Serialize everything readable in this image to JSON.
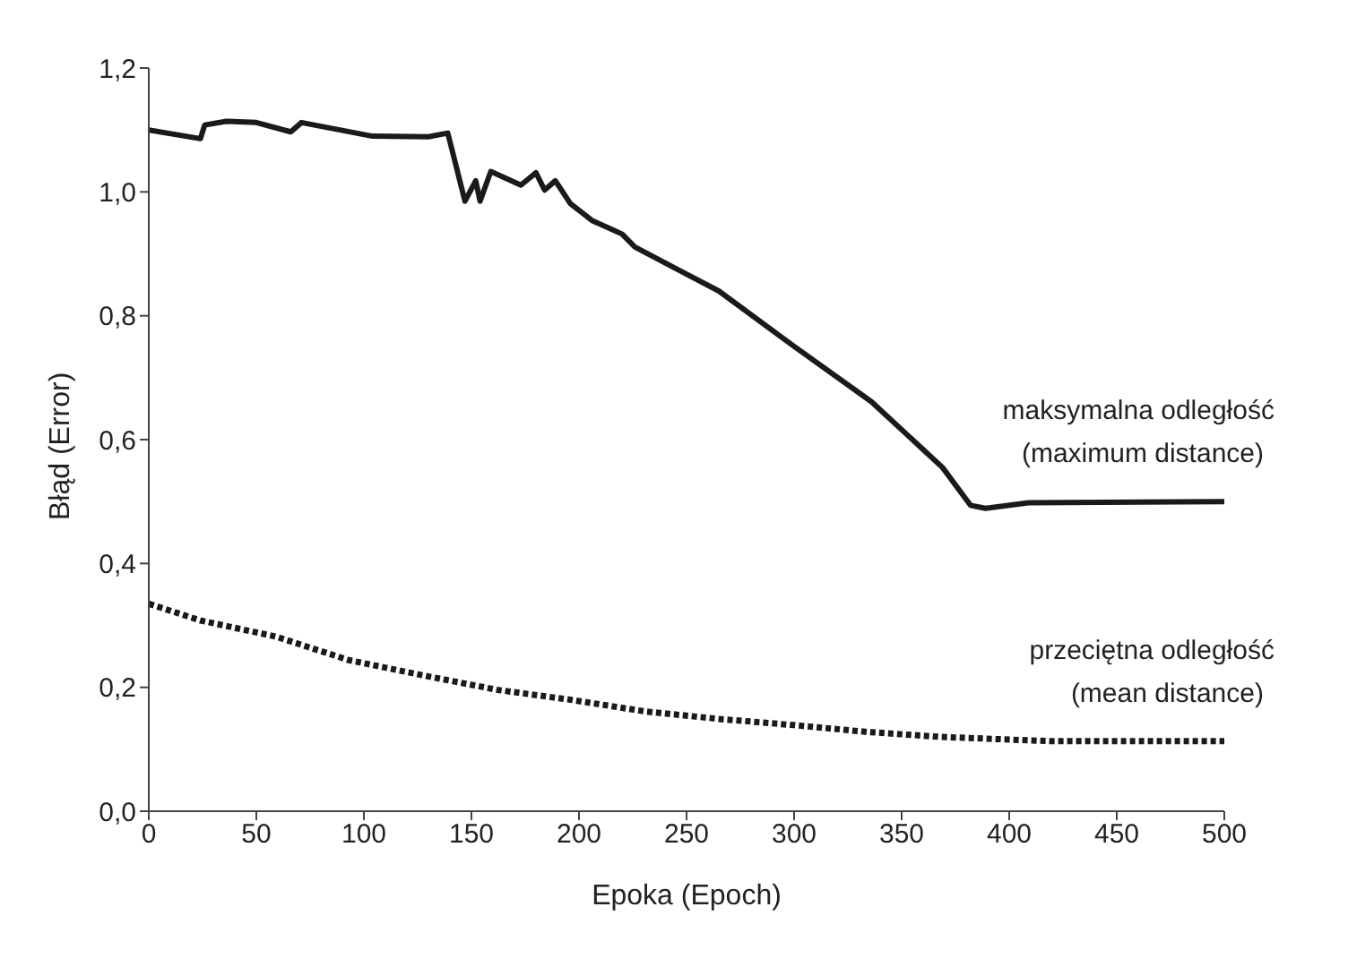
{
  "chart_data": {
    "type": "line",
    "xlabel": "Epoka (Epoch)",
    "ylabel": "Błąd (Error)",
    "xlim": [
      0,
      500
    ],
    "xticks": [
      0,
      50,
      100,
      150,
      200,
      250,
      300,
      350,
      400,
      450,
      500
    ],
    "ylim": [
      0,
      1.2
    ],
    "yticks": [
      {
        "value": 0,
        "label": "0,0"
      },
      {
        "value": 0.2,
        "label": "0,2"
      },
      {
        "value": 0.4,
        "label": "0,4"
      },
      {
        "value": 0.6,
        "label": "0,6"
      },
      {
        "value": 0.8,
        "label": "0,8"
      },
      {
        "value": 1,
        "label": "1,0"
      },
      {
        "value": 1.2,
        "label": "1,2"
      }
    ],
    "marker": "none",
    "series": [
      {
        "name": "maksymalna odległość\n(maximum distance)",
        "color": "#1a1a1a",
        "line_style": "solid",
        "x": [
          0,
          24,
          26,
          36,
          50,
          66,
          71,
          104,
          130,
          139,
          147,
          152,
          154,
          159,
          173,
          180,
          184,
          189,
          196,
          206,
          220,
          226,
          243,
          265,
          299,
          336,
          369,
          382,
          389,
          409,
          500
        ],
        "values": [
          1.1,
          1.086,
          1.108,
          1.114,
          1.112,
          1.097,
          1.112,
          1.09,
          1.089,
          1.095,
          0.985,
          1.018,
          0.985,
          1.033,
          1.011,
          1.031,
          1.003,
          1.018,
          0.981,
          0.954,
          0.932,
          0.911,
          0.88,
          0.84,
          0.753,
          0.661,
          0.555,
          0.494,
          0.489,
          0.498,
          0.5
        ]
      },
      {
        "name": "przeciętna odległość\n(mean distance)",
        "color": "#1a1a1a",
        "line_style": "dotted",
        "x": [
          0,
          24,
          59,
          93,
          128,
          162,
          196,
          231,
          265,
          300,
          334,
          368,
          420,
          500
        ],
        "values": [
          0.335,
          0.308,
          0.282,
          0.244,
          0.219,
          0.196,
          0.18,
          0.161,
          0.149,
          0.139,
          0.128,
          0.12,
          0.113,
          0.113
        ]
      }
    ]
  }
}
